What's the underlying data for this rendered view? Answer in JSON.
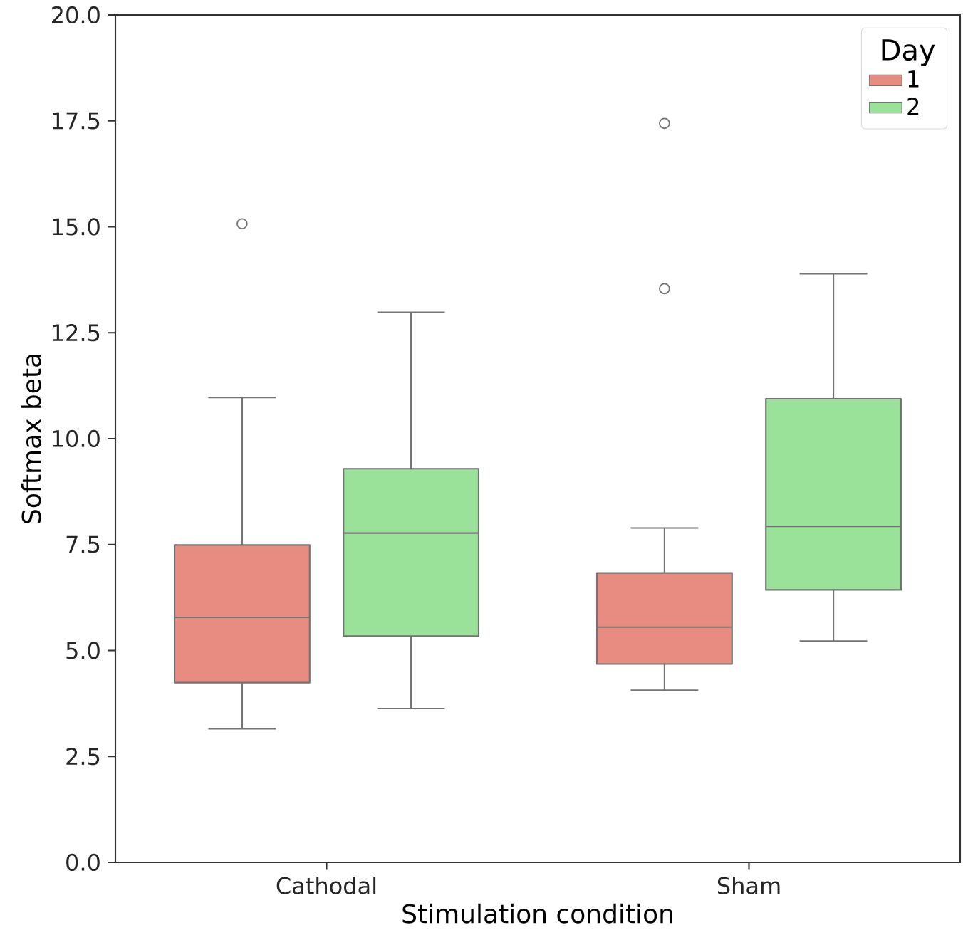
{
  "chart_data": {
    "type": "box",
    "xlabel": "Stimulation condition",
    "ylabel": "Softmax beta",
    "legend_title": "Day",
    "legend": "top right",
    "categories": [
      "Cathodal",
      "Sham"
    ],
    "ylim": [
      0,
      20
    ],
    "yticks": [
      {
        "value": 0,
        "label": "0.0"
      },
      {
        "value": 2.5,
        "label": "2.5"
      },
      {
        "value": 5,
        "label": "5.0"
      },
      {
        "value": 7.5,
        "label": "7.5"
      },
      {
        "value": 10,
        "label": "10.0"
      },
      {
        "value": 12.5,
        "label": "12.5"
      },
      {
        "value": 15,
        "label": "15.0"
      },
      {
        "value": 17.5,
        "label": "17.5"
      },
      {
        "value": 20,
        "label": "20.0"
      }
    ],
    "series": [
      {
        "name": "1",
        "color": "#e88b80",
        "boxes": [
          {
            "low": 3.15,
            "q1": 4.24,
            "median": 5.78,
            "q3": 7.49,
            "high": 10.97,
            "outliers": [
              15.07
            ]
          },
          {
            "low": 4.06,
            "q1": 4.68,
            "median": 5.55,
            "q3": 6.83,
            "high": 7.89,
            "outliers": [
              13.54,
              17.44
            ]
          }
        ]
      },
      {
        "name": "2",
        "color": "#9ae19a",
        "boxes": [
          {
            "low": 3.63,
            "q1": 5.34,
            "median": 7.77,
            "q3": 9.29,
            "high": 12.98
          },
          {
            "low": 5.22,
            "q1": 6.43,
            "median": 7.93,
            "q3": 10.94,
            "high": 13.89
          }
        ]
      }
    ]
  }
}
